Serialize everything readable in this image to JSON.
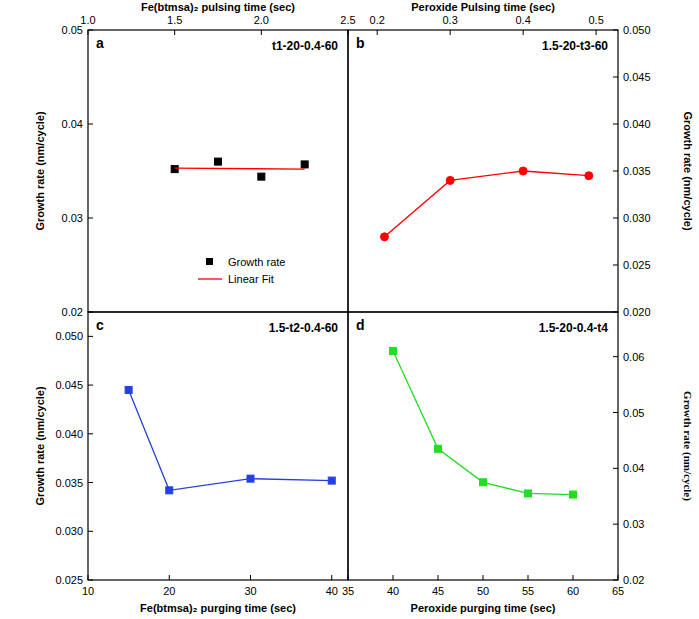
{
  "chart_data": [
    {
      "type": "scatter",
      "panel_label": "a",
      "annotation": "t1-20-0.4-60",
      "x_label": "Fe(btmsa)₂ pulsing time (sec)",
      "y_label": "Growth rate (nm/cycle)",
      "xlim": [
        1.0,
        2.5
      ],
      "xticks": [
        {
          "value": 1.0,
          "label": "1.0"
        },
        1.5,
        {
          "value": 2.0,
          "label": "2.0"
        },
        2.5
      ],
      "ylim": [
        0.02,
        0.05
      ],
      "yticks": [
        0.02,
        0.03,
        0.04,
        0.05
      ],
      "legend": "lower center",
      "series": [
        {
          "name": "Growth rate",
          "type": "scatter",
          "color": "#000000",
          "marker": "square",
          "line_style": "none",
          "x": [
            1.5,
            1.75,
            2.0,
            2.25
          ],
          "values": [
            0.0352,
            0.036,
            0.0344,
            0.0357
          ]
        },
        {
          "name": "Linear Fit",
          "type": "line",
          "color": "#ff0000",
          "marker": "none",
          "line_style": "solid",
          "x": [
            1.5,
            2.25
          ],
          "values": [
            0.0353,
            0.0352
          ]
        }
      ]
    },
    {
      "type": "line",
      "panel_label": "b",
      "annotation": "1.5-20-t3-60",
      "x_label": "Peroxide  Pulsing time (sec)",
      "y_label": "Growth rate (nm/cycle)",
      "xlim": [
        0.16,
        0.53
      ],
      "xticks": [
        0.2,
        0.3,
        0.4,
        0.5
      ],
      "ylim": [
        0.02,
        0.05
      ],
      "yticks": [
        {
          "value": 0.02,
          "label": "0.020"
        },
        0.025,
        {
          "value": 0.03,
          "label": "0.030"
        },
        0.035,
        {
          "value": 0.04,
          "label": "0.040"
        },
        0.045,
        {
          "value": 0.05,
          "label": "0.050"
        }
      ],
      "series": [
        {
          "color": "#ff0000",
          "marker": "circle",
          "line_style": "solid",
          "x": [
            0.21,
            0.3,
            0.4,
            0.49
          ],
          "values": [
            0.028,
            0.034,
            0.035,
            0.0345
          ]
        }
      ]
    },
    {
      "type": "line",
      "panel_label": "c",
      "annotation": "1.5-t2-0.4-60",
      "x_label": "Fe(btmsa)₂ purging time (sec)",
      "y_label": "Growth rate (nm/cycle)",
      "xlim": [
        10,
        42
      ],
      "xticks": [
        10,
        20,
        30,
        40
      ],
      "ylim": [
        0.025,
        0.0525
      ],
      "yticks": [
        0.025,
        {
          "value": 0.03,
          "label": "0.030"
        },
        0.035,
        {
          "value": 0.04,
          "label": "0.040"
        },
        0.045,
        {
          "value": 0.05,
          "label": "0.050"
        }
      ],
      "series": [
        {
          "color": "#2440e0",
          "marker": "square",
          "line_style": "solid",
          "x": [
            15,
            20,
            30,
            40
          ],
          "values": [
            0.0445,
            0.0342,
            0.0354,
            0.0352
          ]
        }
      ]
    },
    {
      "type": "line",
      "panel_label": "d",
      "annotation": "1.5-20-0.4-t4",
      "x_label": "Peroxide purging time (sec)",
      "y_label": "Growth rate (nm/cycle)",
      "xlim": [
        35,
        65
      ],
      "xticks": [
        35,
        40,
        45,
        50,
        55,
        60,
        65
      ],
      "ylim": [
        0.02,
        0.068
      ],
      "yticks": [
        0.02,
        0.03,
        0.04,
        0.05,
        0.06
      ],
      "series": [
        {
          "color": "#22dd22",
          "marker": "square",
          "line_style": "solid",
          "x": [
            40,
            45,
            50,
            55,
            60
          ],
          "values": [
            0.061,
            0.0435,
            0.0375,
            0.0355,
            0.0353
          ]
        }
      ]
    }
  ]
}
